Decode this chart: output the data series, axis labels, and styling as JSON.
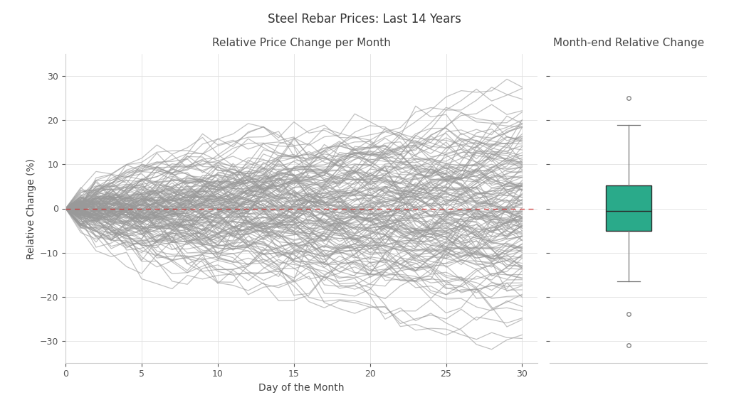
{
  "title": "Steel Rebar Prices: Last 14 Years",
  "left_title": "Relative Price Change per Month",
  "right_title": "Month-end Relative Change",
  "xlabel": "Day of the Month",
  "ylabel": "Relative Change (%)",
  "xlim": [
    0,
    31
  ],
  "ylim": [
    -35,
    35
  ],
  "yticks": [
    -30,
    -20,
    -10,
    0,
    10,
    20,
    30
  ],
  "xticks": [
    0,
    5,
    10,
    15,
    20,
    25,
    30
  ],
  "n_months": 168,
  "n_days": 30,
  "line_color": "#999999",
  "line_alpha": 0.6,
  "line_width": 0.9,
  "dashed_line_color": "#cc3333",
  "box_color": "#2aaa8a",
  "box_edge_color": "#2a2a2a",
  "background_color": "#ffffff",
  "grid_color": "#e0e0e0",
  "title_fontsize": 12,
  "subtitle_fontsize": 11,
  "axis_label_fontsize": 10,
  "tick_fontsize": 9,
  "seed": 42,
  "daily_vol_pct": 2.2,
  "box_stats": {
    "whislo": -16.5,
    "q1": -5.0,
    "med": -0.5,
    "q3": 5.2,
    "whishi": 19.0,
    "fliers": [
      25.0,
      -24.0,
      -31.0
    ]
  }
}
